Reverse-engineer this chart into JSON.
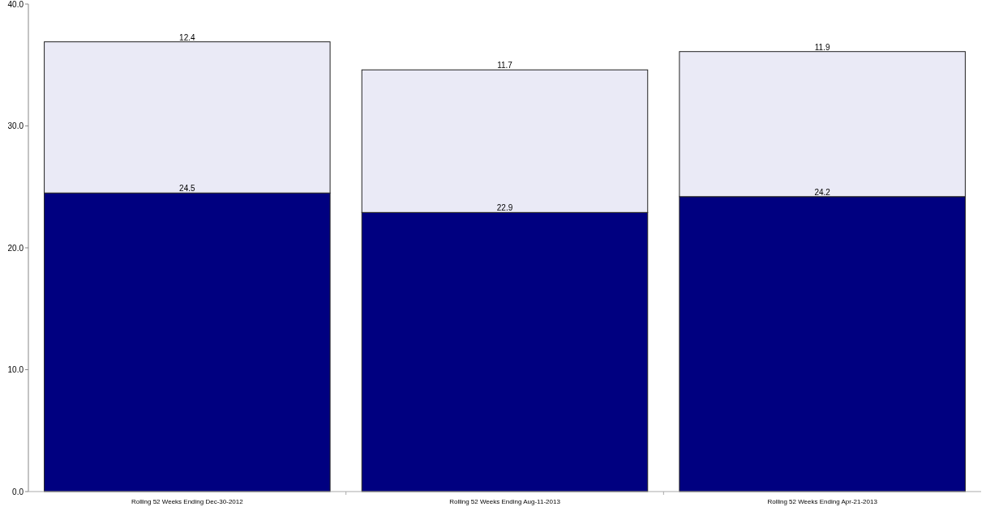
{
  "chart_data": {
    "type": "bar",
    "stacked": true,
    "categories": [
      "Rolling 52 Weeks Ending Dec-30-2012",
      "Rolling 52 Weeks Ending Aug-11-2013",
      "Rolling 52 Weeks Ending Apr-21-2013"
    ],
    "series": [
      {
        "color": "#000080",
        "values": [
          24.5,
          22.9,
          24.2
        ]
      },
      {
        "color": "#eaeaf6",
        "values": [
          12.4,
          11.7,
          11.9
        ]
      }
    ],
    "ylim": [
      0,
      40
    ],
    "yticks": [
      {
        "value": 0,
        "label": "0.0"
      },
      {
        "value": 10,
        "label": "10.0"
      },
      {
        "value": 20,
        "label": "20.0"
      },
      {
        "value": 30,
        "label": "30.0"
      },
      {
        "value": 40,
        "label": "40.0"
      }
    ],
    "data_labels": true
  }
}
